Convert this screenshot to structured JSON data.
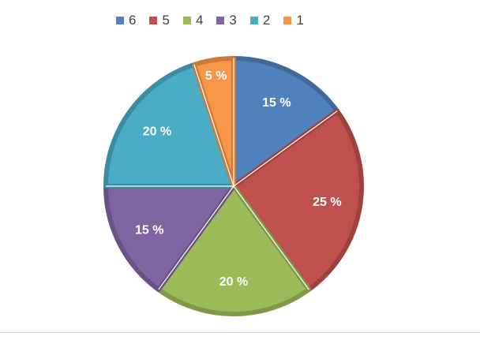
{
  "chart_data": {
    "type": "pie",
    "title": "",
    "legend_placement": "top",
    "categories": [
      "1",
      "2",
      "3",
      "4",
      "5",
      "6"
    ],
    "values": [
      5,
      20,
      15,
      20,
      25,
      15
    ],
    "value_labels": [
      "5 %",
      "20 %",
      "15 %",
      "20 %",
      "25 %",
      "15 %"
    ],
    "legend_order": [
      "6",
      "5",
      "4",
      "3",
      "2",
      "1"
    ],
    "colors": {
      "1": "#F79646",
      "2": "#4BACC6",
      "3": "#8064A2",
      "4": "#9BBB59",
      "5": "#C0504D",
      "6": "#4F81BD"
    },
    "slice_order_clockwise_from_top": [
      "6",
      "5",
      "4",
      "3",
      "2",
      "1"
    ]
  }
}
